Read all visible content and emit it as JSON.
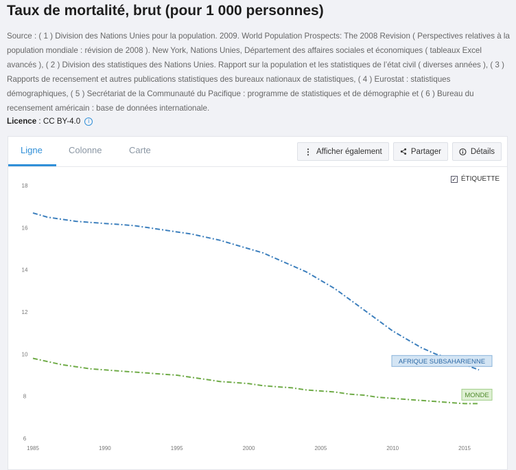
{
  "title": "Taux de mortalité, brut (pour 1 000 personnes)",
  "source": "Source : ( 1 ) Division des Nations Unies pour la population. 2009. World Population Prospects: The 2008 Revision ( Perspectives relatives à la population mondiale : révision de 2008 ). New York, Nations Unies, Département des affaires sociales et économiques ( tableaux Excel avancés ), ( 2 ) Division des statistiques des Nations Unies. Rapport sur la population et les statistiques de l’état civil ( diverses années ), ( 3 ) Rapports de recensement et autres publications statistiques des bureaux nationaux de statistiques, ( 4 ) Eurostat : statistiques démographiques, ( 5 ) Secrétariat de la Communauté du Pacifique : programme de statistiques et de démographie et ( 6 ) Bureau du recensement américain : base de données internationale.",
  "licence": {
    "label": "Licence",
    "sep": " : ",
    "value": "CC BY-4.0",
    "icon": "info-icon"
  },
  "tabs": [
    {
      "label": "Ligne",
      "active": true
    },
    {
      "label": "Colonne",
      "active": false
    },
    {
      "label": "Carte",
      "active": false
    }
  ],
  "toolbar": {
    "also_show": {
      "label": "Afficher également",
      "icon": "vertical-dots-icon"
    },
    "share": {
      "label": "Partager",
      "icon": "share-icon"
    },
    "details": {
      "label": "Détails",
      "icon": "info-icon"
    }
  },
  "etiquette": {
    "label": "ÉTIQUETTE",
    "checked": true
  },
  "colors": {
    "accent": "#2f8fd8",
    "series1": "#3c7fbd",
    "series2": "#6fab47"
  },
  "chart_data": {
    "type": "line",
    "ylim": [
      6,
      18
    ],
    "xlim": [
      1985,
      2017
    ],
    "yticks": [
      6,
      8,
      10,
      12,
      14,
      16,
      18
    ],
    "xticks": [
      1985,
      1990,
      1995,
      2000,
      2005,
      2010,
      2015
    ],
    "grid": false,
    "series": [
      {
        "name": "AFRIQUE SUBSAHARIENNE",
        "color": "#3c7fbd",
        "x": [
          1985,
          1986,
          1987,
          1988,
          1989,
          1990,
          1991,
          1992,
          1993,
          1994,
          1995,
          1996,
          1997,
          1998,
          1999,
          2000,
          2001,
          2002,
          2003,
          2004,
          2005,
          2006,
          2007,
          2008,
          2009,
          2010,
          2011,
          2012,
          2013,
          2014,
          2015,
          2016
        ],
        "y": [
          16.7,
          16.5,
          16.4,
          16.3,
          16.25,
          16.2,
          16.15,
          16.1,
          16.0,
          15.9,
          15.8,
          15.7,
          15.55,
          15.4,
          15.2,
          15.0,
          14.8,
          14.5,
          14.2,
          13.9,
          13.5,
          13.1,
          12.6,
          12.1,
          11.6,
          11.1,
          10.7,
          10.3,
          10.0,
          9.8,
          9.5,
          9.25
        ]
      },
      {
        "name": "MONDE",
        "color": "#6fab47",
        "x": [
          1985,
          1986,
          1987,
          1988,
          1989,
          1990,
          1991,
          1992,
          1993,
          1994,
          1995,
          1996,
          1997,
          1998,
          1999,
          2000,
          2001,
          2002,
          2003,
          2004,
          2005,
          2006,
          2007,
          2008,
          2009,
          2010,
          2011,
          2012,
          2013,
          2014,
          2015,
          2016
        ],
        "y": [
          9.8,
          9.65,
          9.5,
          9.4,
          9.3,
          9.25,
          9.2,
          9.15,
          9.1,
          9.05,
          9.0,
          8.9,
          8.8,
          8.7,
          8.65,
          8.6,
          8.5,
          8.45,
          8.4,
          8.3,
          8.25,
          8.2,
          8.1,
          8.05,
          7.95,
          7.9,
          7.85,
          7.8,
          7.75,
          7.7,
          7.65,
          7.65
        ]
      }
    ]
  }
}
